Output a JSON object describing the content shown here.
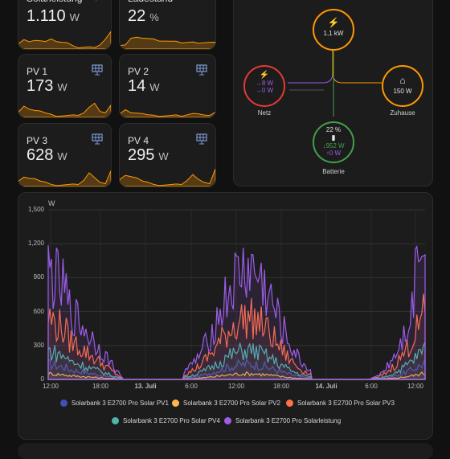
{
  "tiles": [
    {
      "name": "Solarleistung",
      "value": "1.110",
      "unit": "W",
      "icon": "solar-power-icon"
    },
    {
      "name": "Ladestand",
      "value": "22",
      "unit": "%",
      "icon": ""
    },
    {
      "name": "PV 1",
      "value": "173",
      "unit": "W",
      "icon": "solar-panel-icon"
    },
    {
      "name": "PV 2",
      "value": "14",
      "unit": "W",
      "icon": "solar-panel-icon"
    },
    {
      "name": "PV 3",
      "value": "628",
      "unit": "W",
      "icon": "solar-panel-icon"
    },
    {
      "name": "PV 4",
      "value": "295",
      "unit": "W",
      "icon": "solar-panel-icon"
    }
  ],
  "energy_flow": {
    "solar": {
      "value": "1,1 kW",
      "color": "#ff9800"
    },
    "grid": {
      "label": "Netz",
      "import": "8 W",
      "export": "0 W",
      "color": "#e53935"
    },
    "home": {
      "label": "Zuhause",
      "value": "150 W",
      "color": "#ff9800"
    },
    "battery": {
      "label": "Batterie",
      "soc": "22 %",
      "charge": "952 W",
      "discharge": "0 W",
      "color": "#43a047"
    }
  },
  "chart_data": {
    "type": "line",
    "unit": "W",
    "ylim": [
      0,
      1500
    ],
    "yticks": [
      "1,500",
      "1,200",
      "900",
      "600",
      "300",
      "0"
    ],
    "xticks": [
      "12:00",
      "18:00",
      "13. Juli",
      "6:00",
      "12:00",
      "18:00",
      "14. Juli",
      "6:00",
      "12:00"
    ],
    "grid": true,
    "legend_position": "bottom",
    "series": [
      {
        "name": "Solarbank 3 E2700 Pro Solar PV1",
        "color": "#3f51b5",
        "peak": 160
      },
      {
        "name": "Solarbank 3 E2700 Pro Solar PV2",
        "color": "#ffb74d",
        "peak": 60
      },
      {
        "name": "Solarbank 3 E2700 Pro Solar PV3",
        "color": "#ff7043",
        "peak": 640
      },
      {
        "name": "Solarbank 3 E2700 Pro Solar PV4",
        "color": "#4db6ac",
        "peak": 300
      },
      {
        "name": "Solarbank 3 E2700 Pro Solarleistung",
        "color": "#9c5de8",
        "peak": 1130
      }
    ]
  }
}
